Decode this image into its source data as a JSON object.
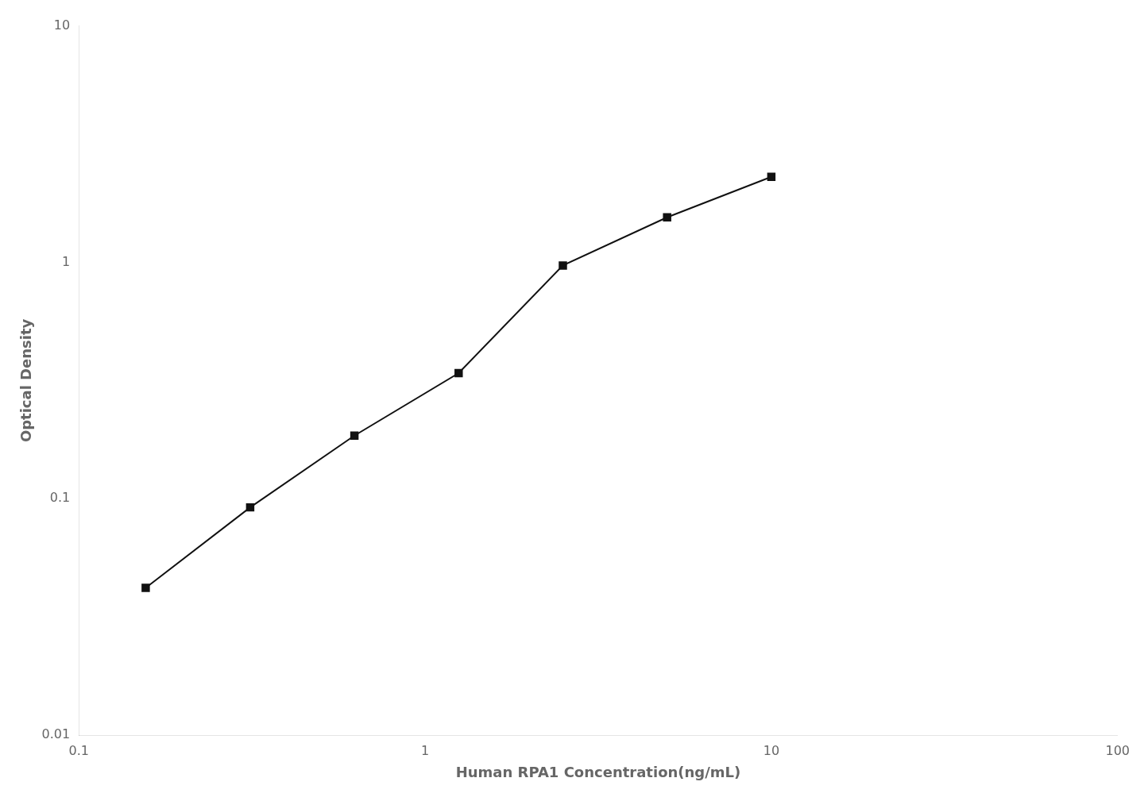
{
  "chart_data": {
    "type": "line",
    "x": [
      0.156,
      0.3125,
      0.625,
      1.25,
      2.5,
      5.0,
      10.0
    ],
    "values": [
      0.042,
      0.092,
      0.185,
      0.34,
      0.97,
      1.55,
      2.3
    ],
    "xlabel": "Human RPA1 Concentration(ng/mL)",
    "ylabel": "Optical Density",
    "xlim": [
      0.1,
      100
    ],
    "ylim": [
      0.01,
      10
    ],
    "xticks": [
      0.1,
      1,
      10,
      100
    ],
    "yticks": [
      0.01,
      0.1,
      1,
      10
    ],
    "log": true,
    "grid": false,
    "color": "#111111",
    "marker": "square"
  }
}
